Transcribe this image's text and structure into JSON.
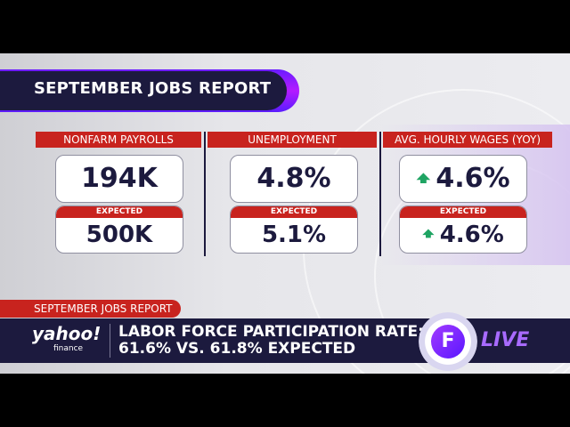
{
  "banner": {
    "title": "SEPTEMBER JOBS REPORT"
  },
  "columns": [
    {
      "header": "NONFARM PAYROLLS",
      "actual": "194K",
      "expected_label": "EXPECTED",
      "expected": "500K",
      "arrow": ""
    },
    {
      "header": "UNEMPLOYMENT",
      "actual": "4.8%",
      "expected_label": "EXPECTED",
      "expected": "5.1%",
      "arrow": ""
    },
    {
      "header": "AVG. HOURLY WAGES (YOY)",
      "actual": "4.6%",
      "expected_label": "EXPECTED",
      "expected": "4.6%",
      "arrow": "up-arrow-icon"
    }
  ],
  "lower_third": {
    "tag": "SEPTEMBER JOBS REPORT",
    "logo_text": "yahoo!",
    "logo_sub": "finance",
    "headline_line1": "LABOR FORCE PARTICIPATION RATE:",
    "headline_line2": "61.6% VS. 61.8% EXPECTED",
    "live_label": "LIVE"
  },
  "colors": {
    "navy": "#1c1a3e",
    "red": "#c8231e",
    "green": "#1fa463",
    "purple": "#7a1cff"
  }
}
